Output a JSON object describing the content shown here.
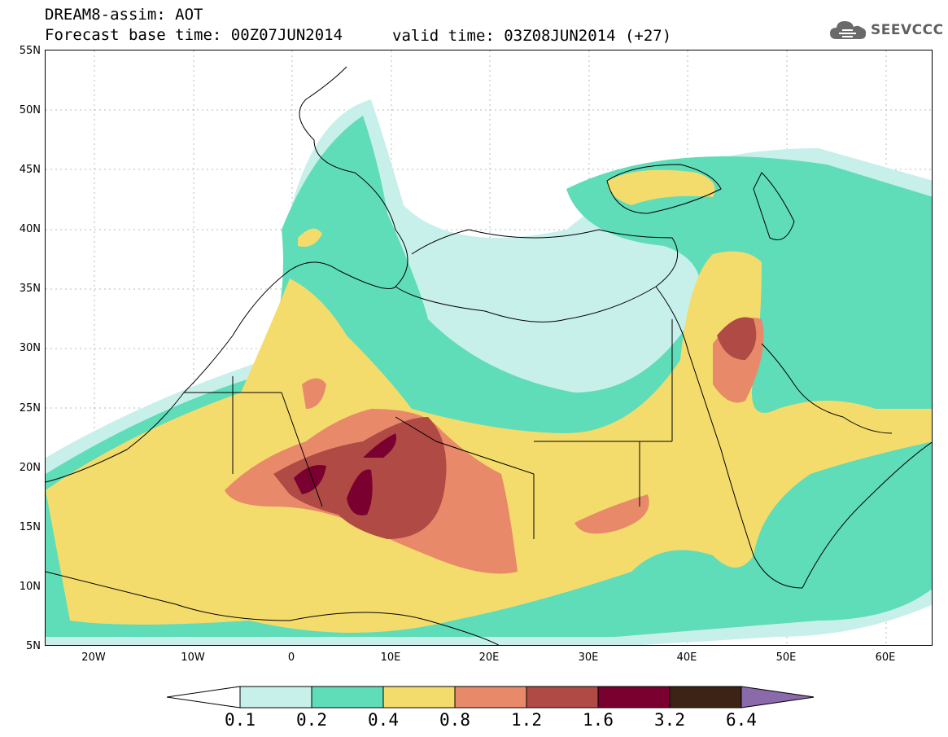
{
  "header": {
    "title": "DREAM8-assim: AOT",
    "base_time": "Forecast base time: 00Z07JUN2014",
    "valid_time": "valid time: 03Z08JUN2014 (+27)"
  },
  "logo": {
    "text": "SEEVCCC",
    "icon": "cloud-icon"
  },
  "map": {
    "lat_labels": [
      "55N",
      "50N",
      "45N",
      "40N",
      "35N",
      "30N",
      "25N",
      "20N",
      "15N",
      "10N",
      "5N"
    ],
    "lon_labels": [
      "20W",
      "10W",
      "0",
      "10E",
      "20E",
      "30E",
      "40E",
      "50E",
      "60E"
    ],
    "extent": {
      "lon_min": -25,
      "lon_max": 65,
      "lat_min": 5,
      "lat_max": 55
    }
  },
  "legend": {
    "labels": [
      "0.1",
      "0.2",
      "0.4",
      "0.8",
      "1.2",
      "1.6",
      "3.2",
      "6.4"
    ],
    "colors": [
      "#c8f0ea",
      "#5fdcb8",
      "#f4dc6c",
      "#e8896a",
      "#b04a44",
      "#7a0030",
      "#3d2316",
      "#8a6aaa"
    ],
    "under_color": "#ffffff"
  }
}
